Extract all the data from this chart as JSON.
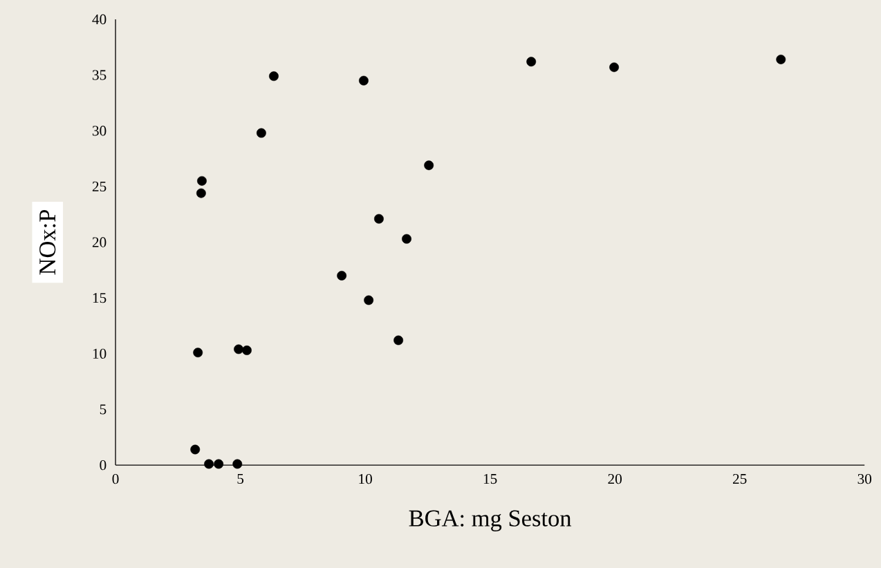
{
  "chart_data": {
    "type": "scatter",
    "xlabel": "BGA: mg Seston",
    "ylabel": "NOx:P",
    "x": [
      3.19,
      3.74,
      4.13,
      4.88,
      3.3,
      4.93,
      5.26,
      3.43,
      3.46,
      5.84,
      6.34,
      9.06,
      9.94,
      10.14,
      10.55,
      11.33,
      11.66,
      12.55,
      16.65,
      19.97,
      26.65
    ],
    "values": [
      1.4,
      0.1,
      0.1,
      0.1,
      10.1,
      10.4,
      10.3,
      24.4,
      25.5,
      29.8,
      34.9,
      17.0,
      34.5,
      14.8,
      22.1,
      11.2,
      20.3,
      26.9,
      36.2,
      35.7,
      36.4
    ],
    "color": "#000000",
    "marker": "circle",
    "xlim": [
      0,
      30
    ],
    "xticks": [
      0,
      5,
      10,
      15,
      20,
      25,
      30
    ],
    "ylim": [
      0,
      40
    ],
    "yticks": [
      0,
      5,
      10,
      15,
      20,
      25,
      30,
      35,
      40
    ]
  }
}
